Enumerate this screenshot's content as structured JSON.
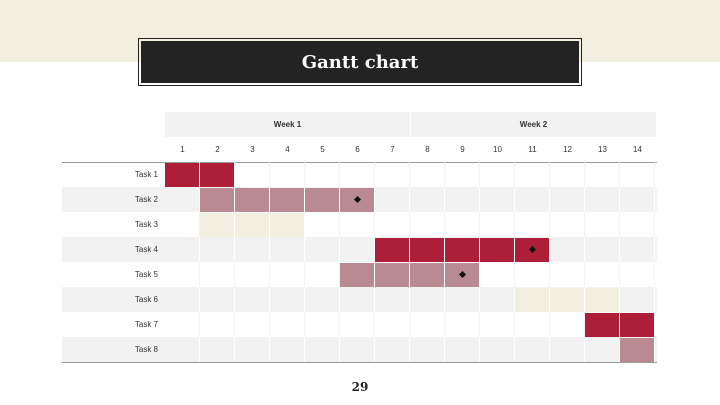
{
  "title": "Gantt chart",
  "page_number": "29",
  "weeks": [
    "Week 1",
    "Week 2"
  ],
  "days": [
    "1",
    "2",
    "3",
    "4",
    "5",
    "6",
    "7",
    "8",
    "9",
    "10",
    "11",
    "12",
    "13",
    "14"
  ],
  "colors": {
    "dark_red": "#ad1f38",
    "rose": "#b98a91",
    "cream": "#f3efe0",
    "stripe": "#f2f2f2"
  },
  "chart_data": {
    "type": "gantt",
    "title": "Gantt chart",
    "x_unit": "day",
    "x_range": [
      1,
      14
    ],
    "tasks": [
      {
        "name": "Task 1",
        "start": 1,
        "end": 2,
        "color": "dark_red",
        "milestone": null
      },
      {
        "name": "Task 2",
        "start": 2,
        "end": 6,
        "color": "rose",
        "milestone": 6
      },
      {
        "name": "Task 3",
        "start": 2,
        "end": 4,
        "color": "cream",
        "milestone": null
      },
      {
        "name": "Task 4",
        "start": 7,
        "end": 11,
        "color": "dark_red",
        "milestone": 11
      },
      {
        "name": "Task 5",
        "start": 6,
        "end": 9,
        "color": "rose",
        "milestone": 9
      },
      {
        "name": "Task 6",
        "start": 11,
        "end": 13,
        "color": "cream",
        "milestone": null
      },
      {
        "name": "Task 7",
        "start": 13,
        "end": 14,
        "color": "dark_red",
        "milestone": null
      },
      {
        "name": "Task 8",
        "start": 14,
        "end": 14,
        "color": "rose",
        "milestone": null
      }
    ]
  }
}
